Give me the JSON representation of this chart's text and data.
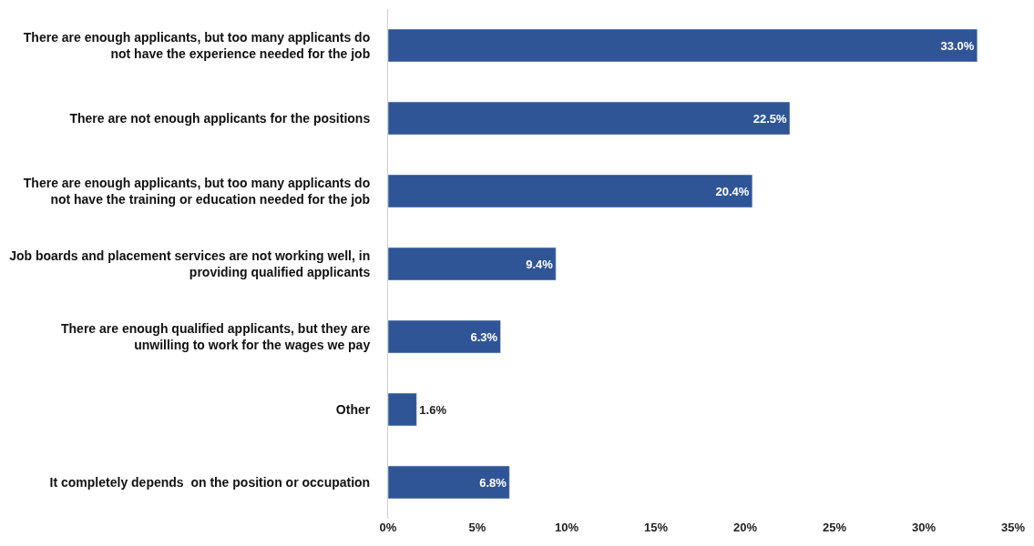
{
  "chart_data": {
    "type": "bar",
    "orientation": "horizontal",
    "categories": [
      "There are enough applicants, but too many applicants do not have the experience needed for the job",
      "There are not enough applicants for the positions",
      "There are enough applicants, but too many applicants do not have the training or education needed for the job",
      "Job boards and placement services are not working well, in providing qualified applicants",
      "There are enough qualified applicants, but they are unwilling to work for the wages we pay",
      "Other",
      "It completely depends  on the position or occupation"
    ],
    "values": [
      33.0,
      22.5,
      20.4,
      9.4,
      6.3,
      1.6,
      6.8
    ],
    "value_labels": [
      "33.0%",
      "22.5%",
      "20.4%",
      "9.4%",
      "6.3%",
      "1.6%",
      "6.8%"
    ],
    "color": "#2f5597",
    "xlim": [
      0,
      35
    ],
    "xticks": [
      {
        "value": 0,
        "label": "0%"
      },
      {
        "value": 5,
        "label": "5%"
      },
      {
        "value": 10,
        "label": "10%"
      },
      {
        "value": 15,
        "label": "15%"
      },
      {
        "value": 20,
        "label": "20%"
      },
      {
        "value": 25,
        "label": "25%"
      },
      {
        "value": 30,
        "label": "30%"
      },
      {
        "value": 35,
        "label": "35%"
      }
    ]
  }
}
